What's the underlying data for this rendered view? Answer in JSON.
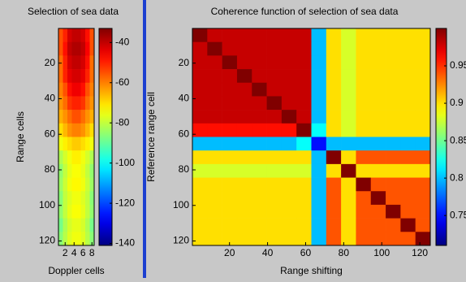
{
  "chart_data": [
    {
      "type": "heatmap",
      "title": "Selection of sea data",
      "xlabel": "Doppler cells",
      "ylabel": "Range cells",
      "xlim": [
        0.5,
        8.5
      ],
      "ylim": [
        0.5,
        122.5
      ],
      "xticks": [
        2,
        4,
        6,
        8
      ],
      "yticks": [
        20,
        40,
        60,
        80,
        100,
        120
      ],
      "colormap": "jet",
      "clim": [
        -141,
        -33
      ],
      "cticks": [
        -40,
        -60,
        -80,
        -100,
        -120,
        -140
      ],
      "z": [
        [
          -55,
          -50,
          -42,
          -40,
          -40,
          -42,
          -48,
          -55
        ],
        [
          -55,
          -48,
          -40,
          -38,
          -38,
          -40,
          -46,
          -55
        ],
        [
          -58,
          -50,
          -42,
          -40,
          -40,
          -42,
          -48,
          -58
        ],
        [
          -58,
          -50,
          -44,
          -42,
          -42,
          -44,
          -50,
          -58
        ],
        [
          -60,
          -55,
          -48,
          -45,
          -45,
          -48,
          -55,
          -60
        ],
        [
          -62,
          -58,
          -52,
          -50,
          -50,
          -52,
          -58,
          -62
        ],
        [
          -65,
          -62,
          -58,
          -55,
          -55,
          -58,
          -62,
          -65
        ],
        [
          -70,
          -66,
          -62,
          -60,
          -60,
          -62,
          -66,
          -70
        ],
        [
          -75,
          -72,
          -70,
          -68,
          -68,
          -70,
          -72,
          -75
        ],
        [
          -82,
          -78,
          -75,
          -72,
          -72,
          -75,
          -78,
          -82
        ],
        [
          -85,
          -80,
          -76,
          -74,
          -74,
          -76,
          -80,
          -85
        ],
        [
          -84,
          -79,
          -75,
          -73,
          -73,
          -75,
          -79,
          -84
        ],
        [
          -86,
          -80,
          -77,
          -75,
          -75,
          -77,
          -80,
          -86
        ],
        [
          -85,
          -80,
          -76,
          -74,
          -74,
          -76,
          -80,
          -85
        ],
        [
          -88,
          -82,
          -78,
          -76,
          -76,
          -78,
          -82,
          -88
        ],
        [
          -86,
          -81,
          -77,
          -75,
          -75,
          -77,
          -81,
          -86
        ]
      ]
    },
    {
      "type": "heatmap",
      "title": "Coherence function of selection of sea data",
      "xlabel": "Range shifting",
      "ylabel": "Reference range cell",
      "xlim": [
        0.5,
        125.5
      ],
      "ylim": [
        0.5,
        122.5
      ],
      "xticks": [
        20,
        40,
        60,
        80,
        100,
        120
      ],
      "yticks": [
        20,
        40,
        60,
        80,
        100,
        120
      ],
      "colormap": "jet",
      "clim": [
        0.71,
        1.0
      ],
      "cticks": [
        0.95,
        0.9,
        0.85,
        0.8,
        0.75
      ],
      "z": [
        [
          1,
          0.98,
          0.98,
          0.98,
          0.98,
          0.98,
          0.98,
          0.98,
          0.8,
          0.9,
          0.88,
          0.9,
          0.9,
          0.9,
          0.9,
          0.9
        ],
        [
          0.98,
          1,
          0.98,
          0.98,
          0.98,
          0.98,
          0.98,
          0.98,
          0.8,
          0.9,
          0.88,
          0.9,
          0.9,
          0.9,
          0.9,
          0.9
        ],
        [
          0.98,
          0.98,
          1,
          0.98,
          0.98,
          0.98,
          0.98,
          0.98,
          0.8,
          0.9,
          0.88,
          0.9,
          0.9,
          0.9,
          0.9,
          0.9
        ],
        [
          0.98,
          0.98,
          0.98,
          1,
          0.98,
          0.98,
          0.98,
          0.98,
          0.8,
          0.9,
          0.88,
          0.9,
          0.9,
          0.9,
          0.9,
          0.9
        ],
        [
          0.98,
          0.98,
          0.98,
          0.98,
          1,
          0.98,
          0.98,
          0.98,
          0.8,
          0.9,
          0.88,
          0.9,
          0.9,
          0.9,
          0.9,
          0.9
        ],
        [
          0.98,
          0.98,
          0.98,
          0.98,
          0.98,
          1,
          0.98,
          0.98,
          0.8,
          0.9,
          0.88,
          0.9,
          0.9,
          0.9,
          0.9,
          0.9
        ],
        [
          0.98,
          0.98,
          0.98,
          0.98,
          0.98,
          0.98,
          1,
          0.98,
          0.8,
          0.9,
          0.88,
          0.9,
          0.9,
          0.9,
          0.9,
          0.9
        ],
        [
          0.96,
          0.96,
          0.96,
          0.96,
          0.96,
          0.96,
          0.96,
          1,
          0.82,
          0.9,
          0.88,
          0.9,
          0.9,
          0.9,
          0.9,
          0.9
        ],
        [
          0.8,
          0.8,
          0.8,
          0.8,
          0.8,
          0.8,
          0.8,
          0.82,
          0.75,
          0.8,
          0.8,
          0.8,
          0.8,
          0.8,
          0.8,
          0.8
        ],
        [
          0.9,
          0.9,
          0.9,
          0.9,
          0.9,
          0.9,
          0.9,
          0.9,
          0.8,
          1,
          0.9,
          0.94,
          0.94,
          0.94,
          0.94,
          0.94
        ],
        [
          0.88,
          0.88,
          0.88,
          0.88,
          0.88,
          0.88,
          0.88,
          0.88,
          0.8,
          0.9,
          1,
          0.9,
          0.9,
          0.9,
          0.9,
          0.9
        ],
        [
          0.9,
          0.9,
          0.9,
          0.9,
          0.9,
          0.9,
          0.9,
          0.9,
          0.8,
          0.94,
          0.9,
          1,
          0.94,
          0.94,
          0.94,
          0.94
        ],
        [
          0.9,
          0.9,
          0.9,
          0.9,
          0.9,
          0.9,
          0.9,
          0.9,
          0.8,
          0.94,
          0.9,
          0.94,
          1,
          0.94,
          0.94,
          0.94
        ],
        [
          0.9,
          0.9,
          0.9,
          0.9,
          0.9,
          0.9,
          0.9,
          0.9,
          0.8,
          0.94,
          0.9,
          0.94,
          0.94,
          1,
          0.94,
          0.94
        ],
        [
          0.9,
          0.9,
          0.9,
          0.9,
          0.9,
          0.9,
          0.9,
          0.9,
          0.8,
          0.94,
          0.9,
          0.94,
          0.94,
          0.94,
          1,
          0.94
        ],
        [
          0.9,
          0.9,
          0.9,
          0.9,
          0.9,
          0.9,
          0.9,
          0.9,
          0.8,
          0.94,
          0.9,
          0.94,
          0.94,
          0.94,
          0.94,
          1
        ]
      ]
    }
  ]
}
